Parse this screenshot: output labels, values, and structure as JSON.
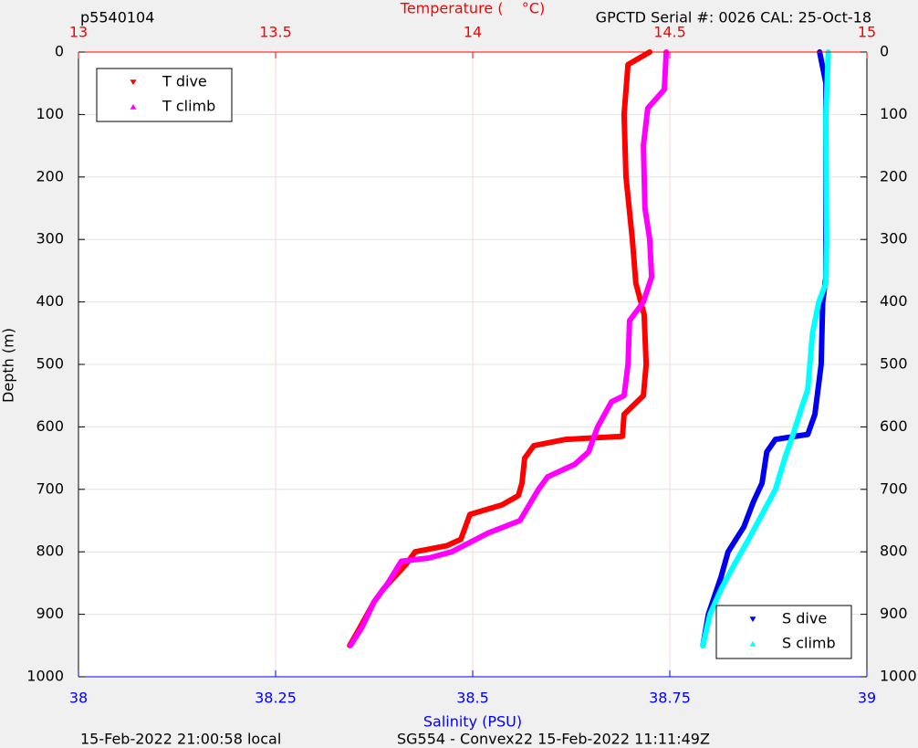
{
  "chart_data": {
    "type": "line",
    "title": "p5540104",
    "subtitle": "GPCTD Serial #: 0026 CAL: 25-Oct-18",
    "footer_left": "15-Feb-2022 21:00:58 local",
    "footer_right": "SG554 - Convex22 15-Feb-2022 11:11:49Z",
    "x2label": "Temperature (    °C)",
    "xlabel": "Salinity (PSU)",
    "ylabel": "Depth (m)",
    "x2lim": [
      13,
      15
    ],
    "x2ticks": [
      13,
      13.5,
      14,
      14.5,
      15
    ],
    "xlim": [
      38,
      39
    ],
    "xticks": [
      38,
      38.25,
      38.5,
      38.75,
      39
    ],
    "ylim": [
      0,
      1000
    ],
    "yticks": [
      0,
      100,
      200,
      300,
      400,
      500,
      600,
      700,
      800,
      900,
      1000
    ],
    "y_inverted": true,
    "grid": true,
    "series": [
      {
        "name": "T dive",
        "color": "#ff0000",
        "axis": "x2",
        "marker": "down",
        "legend_loc": "upper left",
        "x": [
          14.449,
          14.394,
          14.384,
          14.389,
          14.405,
          14.414,
          14.435,
          14.44,
          14.433,
          14.384,
          14.38,
          14.236,
          14.155,
          14.132,
          14.125,
          14.116,
          14.074,
          13.993,
          13.97,
          13.935,
          13.854,
          13.831,
          13.773,
          13.75,
          13.715,
          13.688
        ],
        "y": [
          0,
          20,
          100,
          200,
          300,
          370,
          420,
          500,
          550,
          580,
          615,
          620,
          630,
          650,
          690,
          710,
          725,
          740,
          780,
          790,
          800,
          820,
          860,
          880,
          920,
          950
        ]
      },
      {
        "name": "T climb",
        "color": "#ff00ff",
        "axis": "x2",
        "marker": "up",
        "legend_loc": "upper left",
        "x": [
          14.491,
          14.486,
          14.444,
          14.433,
          14.437,
          14.449,
          14.454,
          14.433,
          14.398,
          14.394,
          14.384,
          14.352,
          14.317,
          14.294,
          14.259,
          14.19,
          14.167,
          14.12,
          14.039,
          13.947,
          13.889,
          13.819,
          13.785,
          13.75,
          13.72,
          13.69
        ],
        "y": [
          0,
          60,
          90,
          150,
          250,
          300,
          360,
          400,
          430,
          500,
          550,
          560,
          600,
          640,
          660,
          680,
          700,
          750,
          770,
          800,
          810,
          815,
          850,
          880,
          920,
          950
        ]
      },
      {
        "name": "S dive",
        "color": "#0000ee",
        "axis": "x",
        "marker": "down",
        "legend_loc": "lower right",
        "x": [
          38.94,
          38.948,
          38.948,
          38.948,
          38.944,
          38.942,
          38.934,
          38.925,
          38.884,
          38.873,
          38.867,
          38.856,
          38.844,
          38.824,
          38.815,
          38.799,
          38.792
        ],
        "y": [
          0,
          50,
          200,
          360,
          400,
          500,
          580,
          612,
          620,
          640,
          690,
          720,
          760,
          800,
          840,
          900,
          950
        ]
      },
      {
        "name": "S climb",
        "color": "#00ffff",
        "axis": "x",
        "marker": "up",
        "legend_loc": "lower right",
        "x": [
          38.951,
          38.948,
          38.949,
          38.948,
          38.939,
          38.931,
          38.925,
          38.917,
          38.907,
          38.896,
          38.884,
          38.867,
          38.85,
          38.832,
          38.815,
          38.801,
          38.792
        ],
        "y": [
          0,
          100,
          300,
          370,
          400,
          450,
          540,
          570,
          610,
          650,
          700,
          740,
          780,
          820,
          860,
          900,
          950
        ]
      }
    ]
  }
}
